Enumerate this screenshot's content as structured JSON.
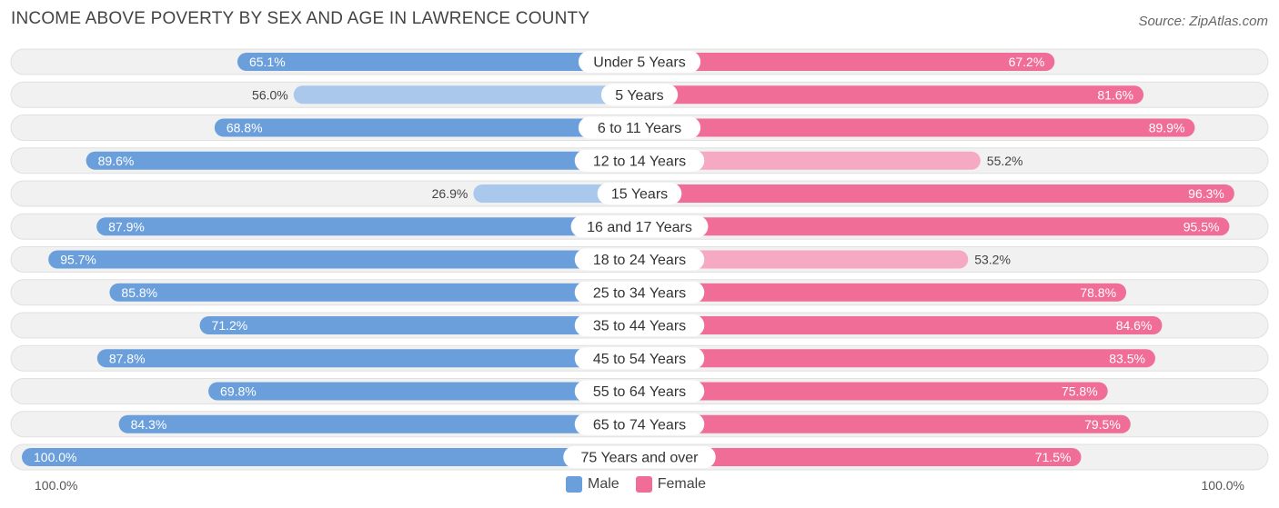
{
  "header": {
    "title": "INCOME ABOVE POVERTY BY SEX AND AGE IN LAWRENCE COUNTY",
    "source": "Source: ZipAtlas.com"
  },
  "axis": {
    "left_label": "100.0%",
    "right_label": "100.0%"
  },
  "legend": {
    "male": "Male",
    "female": "Female"
  },
  "colors": {
    "male_strong": "#6a9fdc",
    "male_light": "#a9c8ec",
    "female_strong": "#f06d98",
    "female_light": "#f5a9c3",
    "row_bg": "#f1f1f1",
    "row_border": "#e0e0e0"
  },
  "chart_data": {
    "type": "bar",
    "orientation": "horizontal-diverging",
    "title": "INCOME ABOVE POVERTY BY SEX AND AGE IN LAWRENCE COUNTY",
    "categories": [
      "Under 5 Years",
      "5 Years",
      "6 to 11 Years",
      "12 to 14 Years",
      "15 Years",
      "16 and 17 Years",
      "18 to 24 Years",
      "25 to 34 Years",
      "35 to 44 Years",
      "45 to 54 Years",
      "55 to 64 Years",
      "65 to 74 Years",
      "75 Years and over"
    ],
    "series": [
      {
        "name": "Male",
        "values": [
          65.1,
          56.0,
          68.8,
          89.6,
          26.9,
          87.9,
          95.7,
          85.8,
          71.2,
          87.8,
          69.8,
          84.3,
          100.0
        ],
        "labels": [
          "65.1%",
          "56.0%",
          "68.8%",
          "89.6%",
          "26.9%",
          "87.9%",
          "95.7%",
          "85.8%",
          "71.2%",
          "87.8%",
          "69.8%",
          "84.3%",
          "100.0%"
        ]
      },
      {
        "name": "Female",
        "values": [
          67.2,
          81.6,
          89.9,
          55.2,
          96.3,
          95.5,
          53.2,
          78.8,
          84.6,
          83.5,
          75.8,
          79.5,
          71.5
        ],
        "labels": [
          "67.2%",
          "81.6%",
          "89.9%",
          "55.2%",
          "96.3%",
          "95.5%",
          "53.2%",
          "78.8%",
          "84.6%",
          "83.5%",
          "75.8%",
          "79.5%",
          "71.5%"
        ]
      }
    ],
    "xlim": [
      0,
      100
    ],
    "unit": "%",
    "legend_position": "bottom-center"
  }
}
